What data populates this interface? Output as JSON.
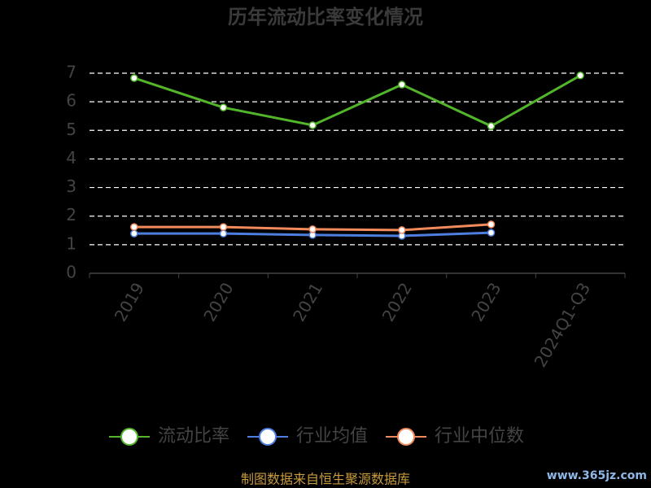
{
  "chart_data": {
    "type": "line",
    "title": "历年流动比率变化情况",
    "categories": [
      "2019",
      "2020",
      "2021",
      "2022",
      "2023",
      "2024Q1-Q3"
    ],
    "series": [
      {
        "name": "流动比率",
        "color": "#52b52a",
        "values": [
          6.83,
          5.8,
          5.18,
          6.6,
          5.15,
          6.92
        ]
      },
      {
        "name": "行业均值",
        "color": "#4d7fe0",
        "values": [
          1.39,
          1.39,
          1.34,
          1.31,
          1.42,
          null
        ]
      },
      {
        "name": "行业中位数",
        "color": "#f28a5c",
        "values": [
          1.62,
          1.62,
          1.54,
          1.51,
          1.71,
          null
        ]
      }
    ],
    "ylim": [
      0,
      7
    ],
    "yticks": [
      0,
      1,
      2,
      3,
      4,
      5,
      6,
      7
    ],
    "grid": true,
    "legend": "bottom",
    "source": "制图数据来自恒生聚源数据库",
    "watermark": "www.365jz.com"
  }
}
